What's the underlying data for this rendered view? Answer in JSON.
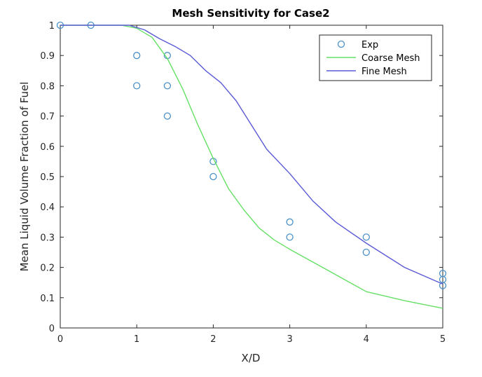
{
  "chart_data": {
    "type": "line",
    "title": "Mesh Sensitivity for Case2",
    "xlabel": "X/D",
    "ylabel": "Mean Liquid Volume Fraction of Fuel",
    "xlim": [
      0,
      5
    ],
    "ylim": [
      0,
      1
    ],
    "xticks": [
      "0",
      "1",
      "2",
      "3",
      "4",
      "5"
    ],
    "yticks": [
      "0",
      "0.1",
      "0.2",
      "0.3",
      "0.4",
      "0.5",
      "0.6",
      "0.7",
      "0.8",
      "0.9",
      "1"
    ],
    "grid": false,
    "legend_position": "top-right",
    "series": [
      {
        "name": "Exp",
        "kind": "scatter",
        "marker": "circle",
        "color": "#4a90c8",
        "points": [
          [
            0,
            1.0
          ],
          [
            0.4,
            1.0
          ],
          [
            1.0,
            0.9
          ],
          [
            1.0,
            0.8
          ],
          [
            1.4,
            0.9
          ],
          [
            1.4,
            0.8
          ],
          [
            1.4,
            0.7
          ],
          [
            2.0,
            0.55
          ],
          [
            2.0,
            0.5
          ],
          [
            3.0,
            0.35
          ],
          [
            3.0,
            0.3
          ],
          [
            4.0,
            0.3
          ],
          [
            4.0,
            0.25
          ],
          [
            5.0,
            0.18
          ],
          [
            5.0,
            0.16
          ],
          [
            5.0,
            0.14
          ]
        ]
      },
      {
        "name": "Coarse Mesh",
        "kind": "line",
        "color": "#66e066",
        "points": [
          [
            0,
            1.0
          ],
          [
            0.8,
            1.0
          ],
          [
            1.0,
            0.99
          ],
          [
            1.2,
            0.96
          ],
          [
            1.4,
            0.89
          ],
          [
            1.6,
            0.79
          ],
          [
            1.8,
            0.67
          ],
          [
            2.0,
            0.56
          ],
          [
            2.2,
            0.46
          ],
          [
            2.4,
            0.39
          ],
          [
            2.6,
            0.33
          ],
          [
            2.8,
            0.29
          ],
          [
            3.0,
            0.26
          ],
          [
            3.5,
            0.19
          ],
          [
            4.0,
            0.12
          ],
          [
            4.5,
            0.09
          ],
          [
            5.0,
            0.065
          ]
        ]
      },
      {
        "name": "Fine Mesh",
        "kind": "line",
        "color": "#5a5ad6",
        "points": [
          [
            0,
            1.0
          ],
          [
            0.9,
            1.0
          ],
          [
            1.1,
            0.985
          ],
          [
            1.3,
            0.955
          ],
          [
            1.5,
            0.93
          ],
          [
            1.7,
            0.9
          ],
          [
            1.9,
            0.85
          ],
          [
            2.1,
            0.81
          ],
          [
            2.3,
            0.75
          ],
          [
            2.5,
            0.67
          ],
          [
            2.7,
            0.59
          ],
          [
            3.0,
            0.51
          ],
          [
            3.3,
            0.42
          ],
          [
            3.6,
            0.35
          ],
          [
            4.0,
            0.28
          ],
          [
            4.5,
            0.2
          ],
          [
            5.0,
            0.145
          ]
        ]
      }
    ]
  }
}
